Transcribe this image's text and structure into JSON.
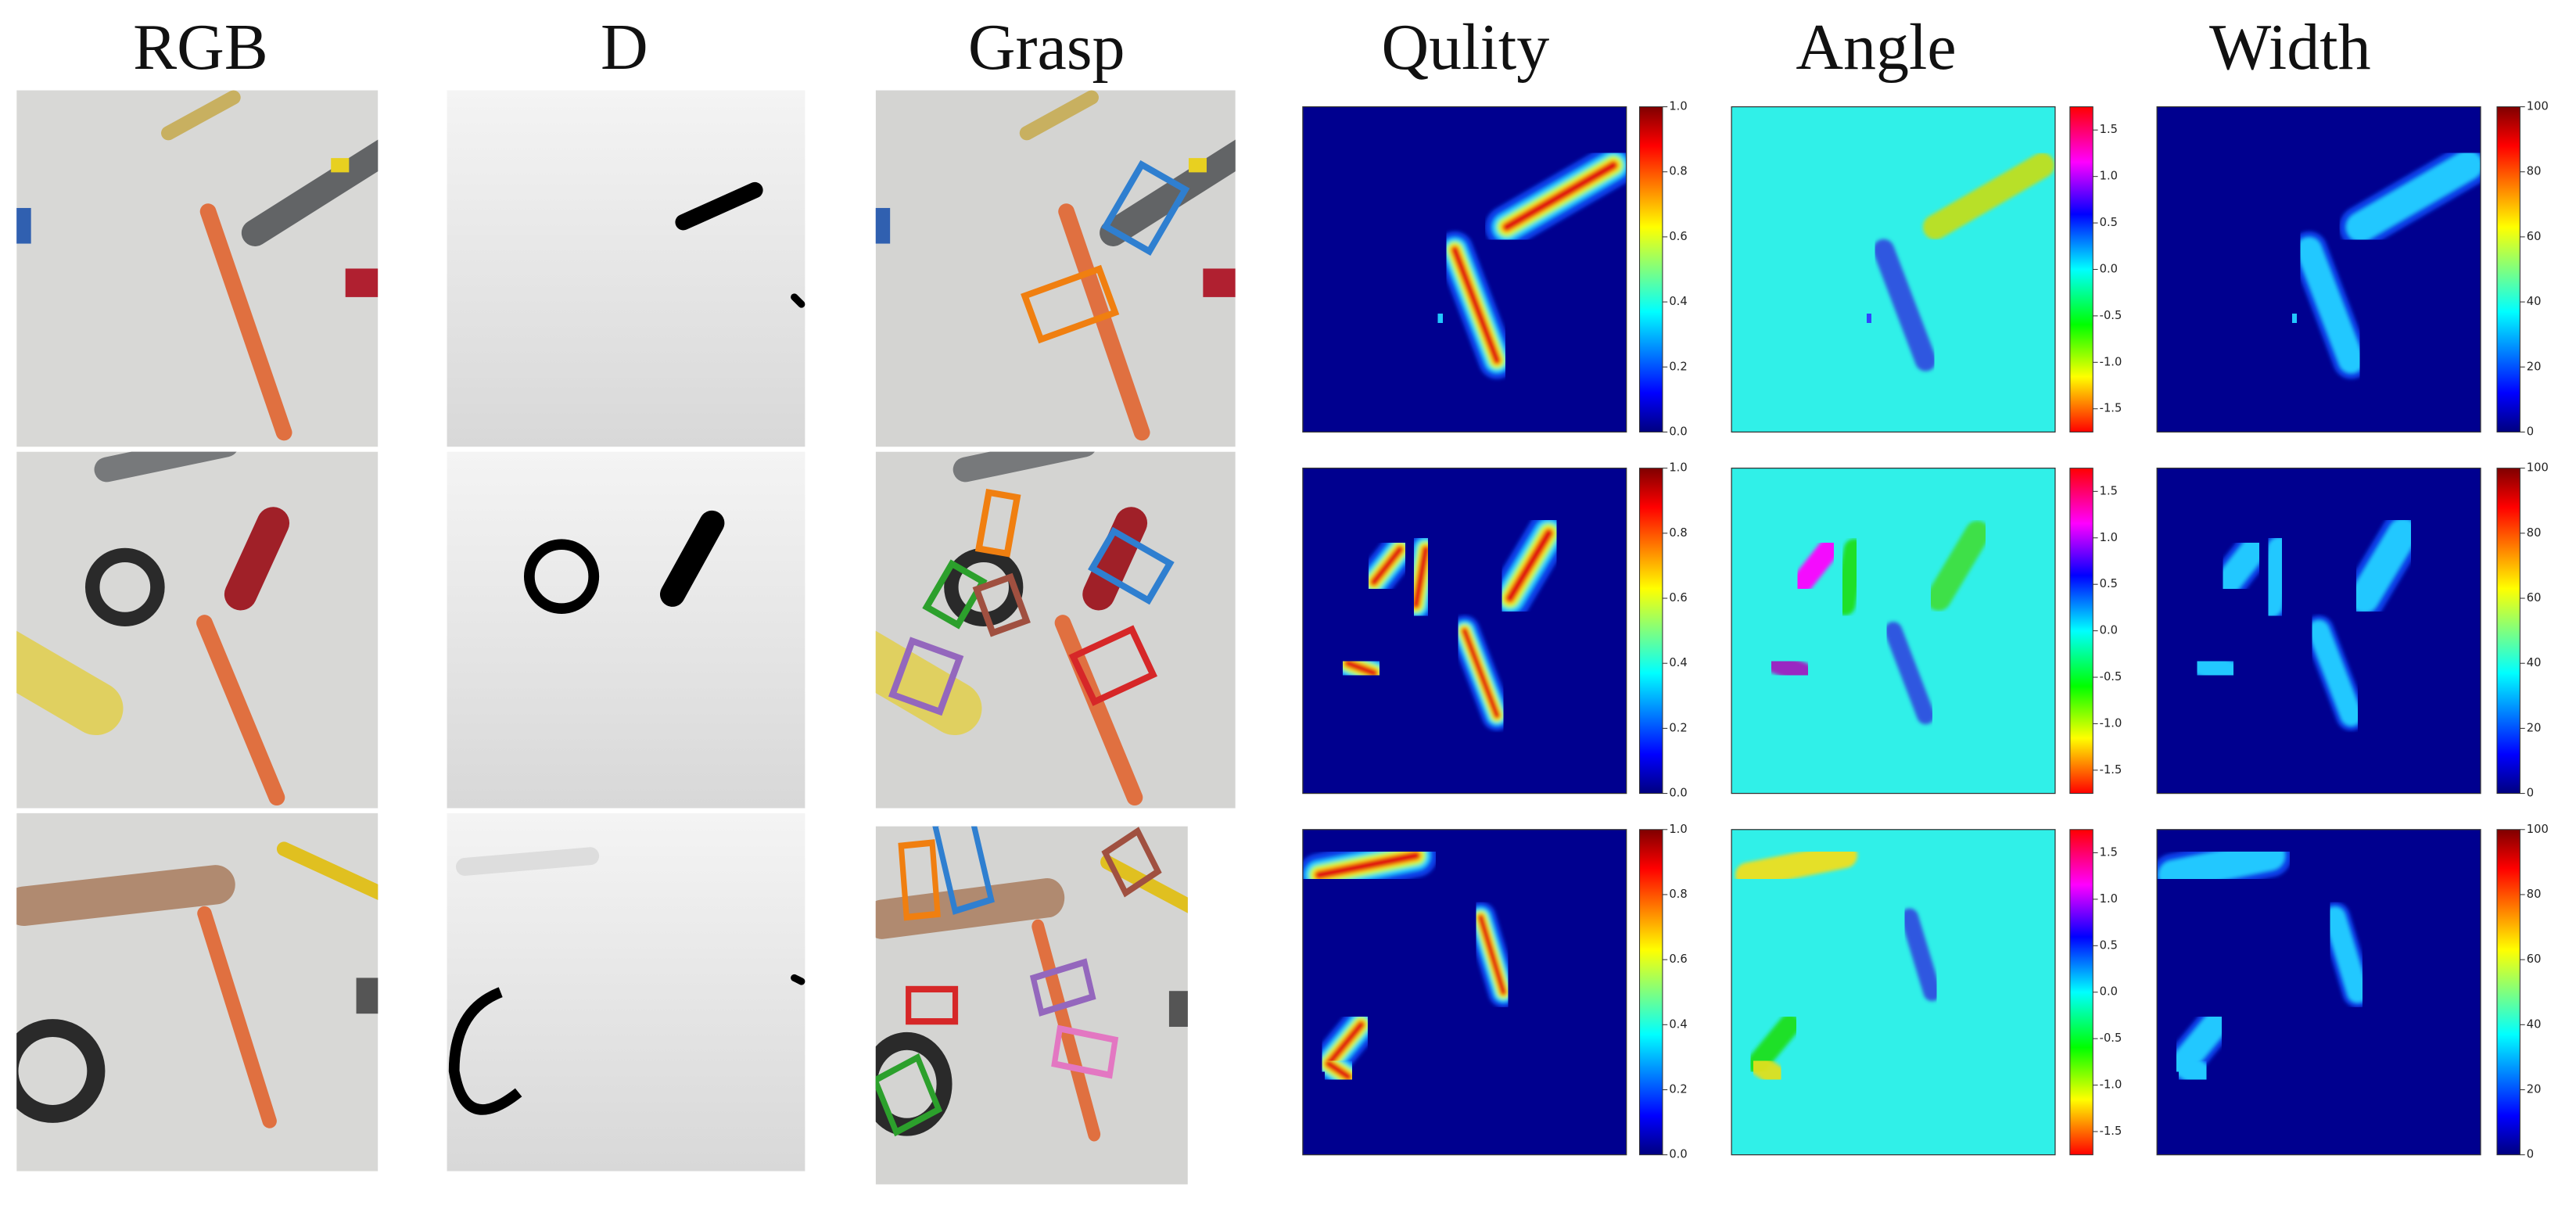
{
  "headers": [
    "RGB",
    "D",
    "Grasp",
    "Qulity",
    "Angle",
    "Width"
  ],
  "colorbars": [
    {
      "ticks": [
        "0.0",
        "0.2",
        "0.4",
        "0.6",
        "0.8",
        "1.0"
      ]
    },
    {
      "ticks": [
        "-1.5",
        "-1.0",
        "-0.5",
        "0.0",
        "0.5",
        "1.0",
        "1.5"
      ]
    },
    {
      "ticks": [
        "0",
        "20",
        "40",
        "60",
        "80",
        "100"
      ]
    }
  ]
}
